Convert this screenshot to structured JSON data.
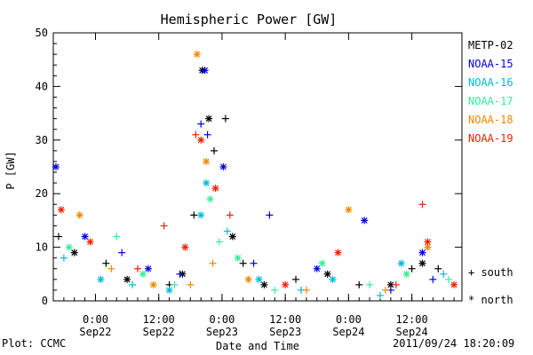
{
  "chart_data": {
    "type": "scatter",
    "title": "Hemispheric Power [GW]",
    "xlabel": "Date and Time",
    "ylabel": "P [GW]",
    "ylim": [
      0,
      50
    ],
    "xlim": [
      "2011-09-21T16:00",
      "2011-09-24T21:30"
    ],
    "y_ticks": [
      0,
      10,
      20,
      30,
      40,
      50
    ],
    "x_ticks": [
      {
        "t": "2011-09-22T00:00",
        "line1": "0:00",
        "line2": "Sep22"
      },
      {
        "t": "2011-09-22T12:00",
        "line1": "12:00",
        "line2": "Sep22"
      },
      {
        "t": "2011-09-23T00:00",
        "line1": "0:00",
        "line2": "Sep23"
      },
      {
        "t": "2011-09-23T12:00",
        "line1": "12:00",
        "line2": "Sep23"
      },
      {
        "t": "2011-09-24T00:00",
        "line1": "0:00",
        "line2": "Sep24"
      },
      {
        "t": "2011-09-24T12:00",
        "line1": "12:00",
        "line2": "Sep24"
      }
    ],
    "legend_position": "right",
    "series": [
      {
        "name": "METP-02",
        "color": "#000000",
        "points": [
          {
            "t": "2011-09-21T17:00",
            "y": 12,
            "h": "south"
          },
          {
            "t": "2011-09-21T20:00",
            "y": 9,
            "h": "north"
          },
          {
            "t": "2011-09-22T02:00",
            "y": 7,
            "h": "south"
          },
          {
            "t": "2011-09-22T06:00",
            "y": 4,
            "h": "north"
          },
          {
            "t": "2011-09-22T14:00",
            "y": 3,
            "h": "south"
          },
          {
            "t": "2011-09-22T16:30",
            "y": 5,
            "h": "north"
          },
          {
            "t": "2011-09-22T18:40",
            "y": 16,
            "h": "south"
          },
          {
            "t": "2011-09-22T20:15",
            "y": 43,
            "h": "north"
          },
          {
            "t": "2011-09-22T21:30",
            "y": 34,
            "h": "north"
          },
          {
            "t": "2011-09-22T22:30",
            "y": 28,
            "h": "south"
          },
          {
            "t": "2011-09-23T00:40",
            "y": 34,
            "h": "south"
          },
          {
            "t": "2011-09-23T02:00",
            "y": 12,
            "h": "north"
          },
          {
            "t": "2011-09-23T04:00",
            "y": 7,
            "h": "south"
          },
          {
            "t": "2011-09-23T08:00",
            "y": 3,
            "h": "north"
          },
          {
            "t": "2011-09-23T14:00",
            "y": 4,
            "h": "south"
          },
          {
            "t": "2011-09-23T20:00",
            "y": 5,
            "h": "north"
          },
          {
            "t": "2011-09-24T02:00",
            "y": 3,
            "h": "south"
          },
          {
            "t": "2011-09-24T08:00",
            "y": 3,
            "h": "north"
          },
          {
            "t": "2011-09-24T12:00",
            "y": 6,
            "h": "south"
          },
          {
            "t": "2011-09-24T14:00",
            "y": 7,
            "h": "north"
          },
          {
            "t": "2011-09-24T17:00",
            "y": 6,
            "h": "south"
          }
        ]
      },
      {
        "name": "NOAA-15",
        "color": "#0000dd",
        "points": [
          {
            "t": "2011-09-21T16:30",
            "y": 25,
            "h": "north"
          },
          {
            "t": "2011-09-21T22:00",
            "y": 12,
            "h": "north"
          },
          {
            "t": "2011-09-22T05:00",
            "y": 9,
            "h": "south"
          },
          {
            "t": "2011-09-22T10:00",
            "y": 6,
            "h": "north"
          },
          {
            "t": "2011-09-22T16:00",
            "y": 5,
            "h": "south"
          },
          {
            "t": "2011-09-22T20:00",
            "y": 33,
            "h": "south"
          },
          {
            "t": "2011-09-22T20:45",
            "y": 43,
            "h": "north"
          },
          {
            "t": "2011-09-22T21:15",
            "y": 31,
            "h": "south"
          },
          {
            "t": "2011-09-23T00:15",
            "y": 25,
            "h": "north"
          },
          {
            "t": "2011-09-23T06:00",
            "y": 7,
            "h": "south"
          },
          {
            "t": "2011-09-23T09:00",
            "y": 16,
            "h": "south"
          },
          {
            "t": "2011-09-23T18:00",
            "y": 6,
            "h": "north"
          },
          {
            "t": "2011-09-24T03:00",
            "y": 15,
            "h": "north"
          },
          {
            "t": "2011-09-24T08:00",
            "y": 2,
            "h": "south"
          },
          {
            "t": "2011-09-24T14:00",
            "y": 9,
            "h": "north"
          },
          {
            "t": "2011-09-24T16:00",
            "y": 4,
            "h": "south"
          }
        ]
      },
      {
        "name": "NOAA-16",
        "color": "#00bbdd",
        "points": [
          {
            "t": "2011-09-21T18:00",
            "y": 8,
            "h": "south"
          },
          {
            "t": "2011-09-22T01:00",
            "y": 4,
            "h": "north"
          },
          {
            "t": "2011-09-22T07:00",
            "y": 3,
            "h": "south"
          },
          {
            "t": "2011-09-22T14:00",
            "y": 2,
            "h": "north"
          },
          {
            "t": "2011-09-22T20:00",
            "y": 16,
            "h": "north"
          },
          {
            "t": "2011-09-22T21:00",
            "y": 22,
            "h": "north"
          },
          {
            "t": "2011-09-23T01:00",
            "y": 13,
            "h": "south"
          },
          {
            "t": "2011-09-23T07:00",
            "y": 4,
            "h": "north"
          },
          {
            "t": "2011-09-23T15:00",
            "y": 2,
            "h": "south"
          },
          {
            "t": "2011-09-23T21:00",
            "y": 4,
            "h": "north"
          },
          {
            "t": "2011-09-24T06:00",
            "y": 1,
            "h": "south"
          },
          {
            "t": "2011-09-24T10:00",
            "y": 7,
            "h": "north"
          },
          {
            "t": "2011-09-24T18:00",
            "y": 5,
            "h": "south"
          }
        ]
      },
      {
        "name": "NOAA-17",
        "color": "#33ee99",
        "points": [
          {
            "t": "2011-09-21T19:00",
            "y": 10,
            "h": "north"
          },
          {
            "t": "2011-09-22T04:00",
            "y": 12,
            "h": "south"
          },
          {
            "t": "2011-09-22T09:00",
            "y": 5,
            "h": "north"
          },
          {
            "t": "2011-09-22T15:00",
            "y": 3,
            "h": "south"
          },
          {
            "t": "2011-09-22T21:45",
            "y": 19,
            "h": "north"
          },
          {
            "t": "2011-09-22T23:30",
            "y": 11,
            "h": "south"
          },
          {
            "t": "2011-09-23T03:00",
            "y": 8,
            "h": "north"
          },
          {
            "t": "2011-09-23T10:00",
            "y": 2,
            "h": "south"
          },
          {
            "t": "2011-09-23T19:00",
            "y": 7,
            "h": "north"
          },
          {
            "t": "2011-09-24T04:00",
            "y": 3,
            "h": "south"
          },
          {
            "t": "2011-09-24T11:00",
            "y": 5,
            "h": "north"
          },
          {
            "t": "2011-09-24T19:00",
            "y": 4,
            "h": "south"
          }
        ]
      },
      {
        "name": "NOAA-18",
        "color": "#ee8800",
        "points": [
          {
            "t": "2011-09-21T21:00",
            "y": 16,
            "h": "north"
          },
          {
            "t": "2011-09-22T03:00",
            "y": 6,
            "h": "south"
          },
          {
            "t": "2011-09-22T11:00",
            "y": 3,
            "h": "north"
          },
          {
            "t": "2011-09-22T18:00",
            "y": 3,
            "h": "south"
          },
          {
            "t": "2011-09-22T19:15",
            "y": 46,
            "h": "north"
          },
          {
            "t": "2011-09-22T21:00",
            "y": 26,
            "h": "north"
          },
          {
            "t": "2011-09-22T22:15",
            "y": 7,
            "h": "south"
          },
          {
            "t": "2011-09-23T05:00",
            "y": 4,
            "h": "north"
          },
          {
            "t": "2011-09-23T16:00",
            "y": 2,
            "h": "south"
          },
          {
            "t": "2011-09-24T00:00",
            "y": 17,
            "h": "north"
          },
          {
            "t": "2011-09-24T07:00",
            "y": 2,
            "h": "south"
          },
          {
            "t": "2011-09-24T15:00",
            "y": 10,
            "h": "north"
          }
        ]
      },
      {
        "name": "NOAA-19",
        "color": "#ee2200",
        "points": [
          {
            "t": "2011-09-21T17:30",
            "y": 17,
            "h": "north"
          },
          {
            "t": "2011-09-21T23:00",
            "y": 11,
            "h": "north"
          },
          {
            "t": "2011-09-22T08:00",
            "y": 6,
            "h": "south"
          },
          {
            "t": "2011-09-22T13:00",
            "y": 14,
            "h": "south"
          },
          {
            "t": "2011-09-22T17:00",
            "y": 10,
            "h": "north"
          },
          {
            "t": "2011-09-22T19:00",
            "y": 31,
            "h": "south"
          },
          {
            "t": "2011-09-22T20:00",
            "y": 30,
            "h": "north"
          },
          {
            "t": "2011-09-22T22:45",
            "y": 21,
            "h": "north"
          },
          {
            "t": "2011-09-23T01:30",
            "y": 16,
            "h": "south"
          },
          {
            "t": "2011-09-23T12:00",
            "y": 3,
            "h": "north"
          },
          {
            "t": "2011-09-23T22:00",
            "y": 9,
            "h": "north"
          },
          {
            "t": "2011-09-24T09:00",
            "y": 3,
            "h": "south"
          },
          {
            "t": "2011-09-24T14:00",
            "y": 18,
            "h": "south"
          },
          {
            "t": "2011-09-24T15:00",
            "y": 11,
            "h": "north"
          },
          {
            "t": "2011-09-24T20:00",
            "y": 3,
            "h": "north"
          }
        ]
      }
    ],
    "marker_legend": [
      {
        "symbol": "+",
        "label": "south"
      },
      {
        "symbol": "*",
        "label": "north"
      }
    ]
  },
  "footer": {
    "left": "Plot: CCMC",
    "right": "2011/09/24 18:20:09"
  }
}
